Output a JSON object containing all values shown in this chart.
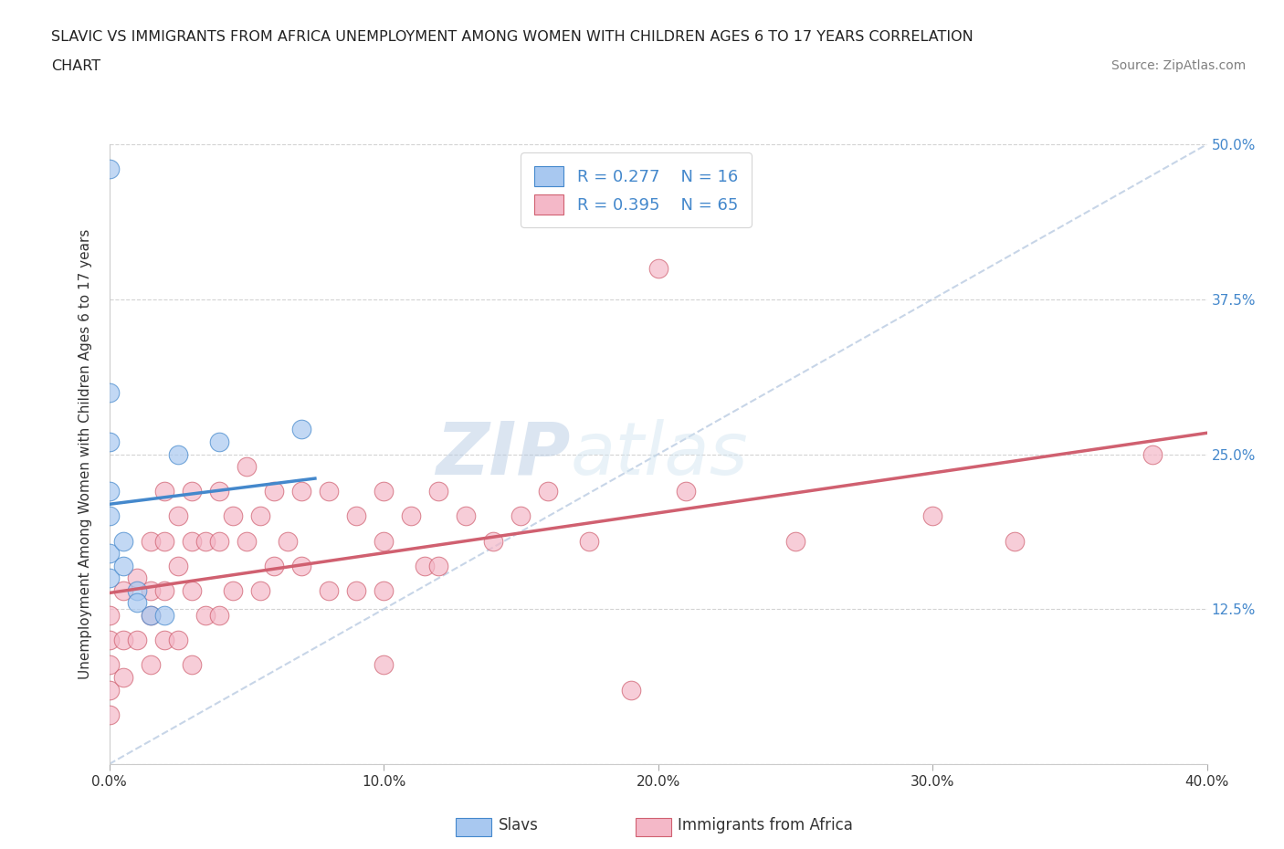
{
  "title_line1": "SLAVIC VS IMMIGRANTS FROM AFRICA UNEMPLOYMENT AMONG WOMEN WITH CHILDREN AGES 6 TO 17 YEARS CORRELATION",
  "title_line2": "CHART",
  "source": "Source: ZipAtlas.com",
  "ylabel": "Unemployment Among Women with Children Ages 6 to 17 years",
  "xlim": [
    0,
    0.4
  ],
  "ylim": [
    0,
    0.5
  ],
  "xticks": [
    0.0,
    0.1,
    0.2,
    0.3,
    0.4
  ],
  "yticks": [
    0.0,
    0.125,
    0.25,
    0.375,
    0.5
  ],
  "R_slavs": 0.277,
  "N_slavs": 16,
  "R_africa": 0.395,
  "N_africa": 65,
  "slavs_color": "#a8c8f0",
  "africa_color": "#f4b8c8",
  "slavs_line_color": "#4488cc",
  "africa_line_color": "#d06070",
  "diagonal_color": "#b0c4de",
  "watermark_color": "#c8ddf0",
  "slavs_x": [
    0.0,
    0.0,
    0.0,
    0.0,
    0.0,
    0.0,
    0.0,
    0.005,
    0.005,
    0.01,
    0.01,
    0.015,
    0.02,
    0.025,
    0.04,
    0.07
  ],
  "slavs_y": [
    0.48,
    0.3,
    0.26,
    0.22,
    0.2,
    0.17,
    0.15,
    0.18,
    0.16,
    0.14,
    0.13,
    0.12,
    0.12,
    0.25,
    0.26,
    0.27
  ],
  "africa_x": [
    0.0,
    0.0,
    0.0,
    0.0,
    0.0,
    0.005,
    0.005,
    0.005,
    0.01,
    0.01,
    0.015,
    0.015,
    0.015,
    0.015,
    0.02,
    0.02,
    0.02,
    0.02,
    0.025,
    0.025,
    0.025,
    0.03,
    0.03,
    0.03,
    0.03,
    0.035,
    0.035,
    0.04,
    0.04,
    0.04,
    0.045,
    0.045,
    0.05,
    0.05,
    0.055,
    0.055,
    0.06,
    0.06,
    0.065,
    0.07,
    0.07,
    0.08,
    0.08,
    0.09,
    0.09,
    0.1,
    0.1,
    0.1,
    0.1,
    0.11,
    0.115,
    0.12,
    0.12,
    0.13,
    0.14,
    0.15,
    0.16,
    0.175,
    0.19,
    0.2,
    0.21,
    0.25,
    0.3,
    0.33,
    0.38
  ],
  "africa_y": [
    0.12,
    0.1,
    0.08,
    0.06,
    0.04,
    0.14,
    0.1,
    0.07,
    0.15,
    0.1,
    0.18,
    0.14,
    0.12,
    0.08,
    0.22,
    0.18,
    0.14,
    0.1,
    0.2,
    0.16,
    0.1,
    0.22,
    0.18,
    0.14,
    0.08,
    0.18,
    0.12,
    0.22,
    0.18,
    0.12,
    0.2,
    0.14,
    0.24,
    0.18,
    0.2,
    0.14,
    0.22,
    0.16,
    0.18,
    0.22,
    0.16,
    0.22,
    0.14,
    0.2,
    0.14,
    0.22,
    0.18,
    0.14,
    0.08,
    0.2,
    0.16,
    0.22,
    0.16,
    0.2,
    0.18,
    0.2,
    0.22,
    0.18,
    0.06,
    0.4,
    0.22,
    0.18,
    0.2,
    0.18,
    0.25
  ]
}
